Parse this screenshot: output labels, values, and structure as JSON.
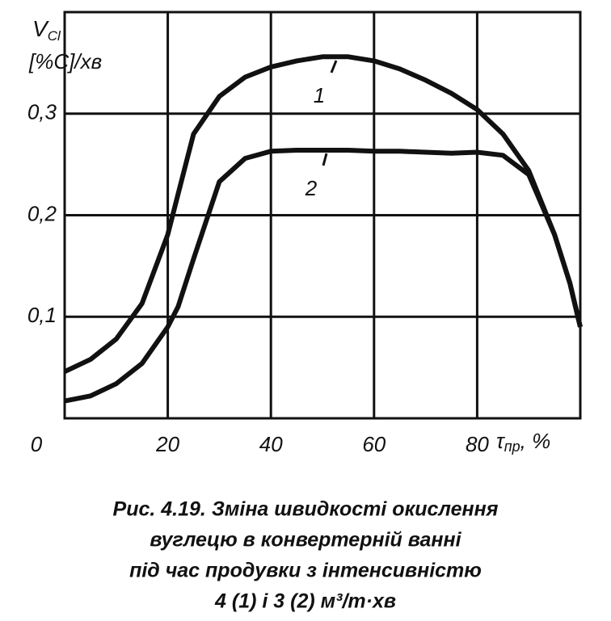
{
  "chart_data": {
    "type": "line",
    "ylabel": "V",
    "ylabel_sub": "Cl",
    "ylabel_unit": "[%C]/хв",
    "xlabel": "τ",
    "xlabel_sub": "пр",
    "xlabel_unit": ", %",
    "caption": [
      "Рис. 4.19. Зміна швидкості окислення",
      "вуглецю в конвертерній ванні",
      "під час продувки з інтенсивністю",
      "4 (1) і 3 (2) м³/т·хв"
    ],
    "xlim": [
      0,
      100
    ],
    "ylim": [
      0,
      0.4
    ],
    "xticks": [
      0,
      20,
      40,
      60,
      80
    ],
    "yticks": [
      {
        "value": 0.1,
        "label": "0,1"
      },
      {
        "value": 0.2,
        "label": "0,2"
      },
      {
        "value": 0.3,
        "label": "0,3"
      }
    ],
    "grid": true,
    "x": [
      0,
      5,
      10,
      15,
      20,
      22,
      25,
      30,
      35,
      40,
      45,
      50,
      55,
      60,
      65,
      70,
      75,
      80,
      85,
      90,
      95,
      98,
      100
    ],
    "series": [
      {
        "name": "1",
        "color": "#111111",
        "values": [
          0.046,
          0.058,
          0.078,
          0.113,
          0.181,
          0.221,
          0.28,
          0.317,
          0.336,
          0.346,
          0.352,
          0.356,
          0.356,
          0.352,
          0.344,
          0.333,
          0.32,
          0.304,
          0.28,
          0.244,
          0.181,
          0.133,
          0.09
        ]
      },
      {
        "name": "2",
        "color": "#111111",
        "values": [
          0.017,
          0.022,
          0.034,
          0.054,
          0.09,
          0.11,
          0.157,
          0.233,
          0.256,
          0.263,
          0.264,
          0.264,
          0.264,
          0.263,
          0.263,
          0.262,
          0.261,
          0.262,
          0.259,
          0.24,
          0.181,
          0.133,
          0.09
        ]
      }
    ]
  }
}
